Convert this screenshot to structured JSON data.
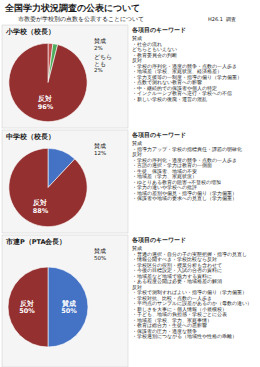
{
  "title": "全国学力状況調査の公表について",
  "subtitle": "市教委が学校別の点数を公表することについて",
  "date": "H26.1  調査",
  "chart_data": [
    {
      "type": "pie",
      "title": "小学校（校長）",
      "categories": [
        "賛成",
        "どちら\nとも",
        "反対"
      ],
      "values": [
        2,
        2,
        96
      ],
      "value_labels": [
        "2%",
        "2%",
        "96%"
      ],
      "colors": [
        "#c0504d",
        "#4ead5b",
        "#943030"
      ],
      "data_labels": true,
      "notes_title": "各項目のキーワード",
      "notes": "賛成\n・社会の流れ\n\nどちらともいえない\n・教育委員会の判断\n\n反対\n・学校の序列化・過度の競争・点数の一人歩き\n・地域差（学校、家庭状況、経済格差）\n・学力支援等の一制度・指導の偏り（学力偏重）\n・点数で測れない教育への影響\n・中・継続的での保護者や個人の特定\n・インクルーシブ教育へ逆行・学校への不信\n・新しい学校の復廃・運営の混乱"
    },
    {
      "type": "pie",
      "title": "中学校（校長）",
      "categories": [
        "賛成",
        "反対"
      ],
      "values": [
        12,
        88
      ],
      "value_labels": [
        "12%",
        "88%"
      ],
      "colors": [
        "#4472c4",
        "#943030"
      ],
      "data_labels": true,
      "notes_title": "各項目のキーワード",
      "notes": "賛成\n・指導力アップ・学校の指標責任・課題の明確化\n\n反対\n・学校の序列化・過度の競争・点数の一人歩き\n・言語の選択・学力は教育の一側面\n・生徒、保護者、地域の不安\n・地域差（学力、家庭状況）\n・ゆとりある教育の阻害→不登校の増加\n・学力の違いや学校への批評\n・地域の差別や偏見・指導の偏り（学力偏重）\n・保護者や地域の要求への見直し（学力偏重）"
    },
    {
      "type": "pie",
      "title": "市連P（PTA会長）",
      "categories": [
        "賛成",
        "反対"
      ],
      "values": [
        50,
        50
      ],
      "value_labels": [
        "50%",
        "50%"
      ],
      "colors": [
        "#4472c4",
        "#943030"
      ],
      "data_labels": true,
      "annotations": [
        "賛成",
        "50%"
      ],
      "notes_title": "各項目のキーワード",
      "notes": "賛成\n・普通の選択・自分の子の実態把握・指導の見直し\n・情報公開すべき・学校比較なら反対\n・学校区分の役割・授業分析も含わせて\n・今後の目標設定・入試の合否の資料に\n・地域差など地域で協力する資料に\n・ある程度公開は必要・地域格差の解消\n反対\n・学校で測制すればよい・指導の偏り（学力偏重）\n・学校対抗、比較・点数の一人歩き\n・平均点のサンプルに誤差があるのか（母数の違い）\n・新しさを大事に・個人情報（小規模校）\n・子ども、地域の負担感・学校ごとに公表\n・地域差（学校、学力、家庭事情）\n・教育は総合力・生徒への悪影響\n・保護者の圧力・過度な競争\n・学校選別につながる（地域性や性格の乖離）"
    }
  ]
}
